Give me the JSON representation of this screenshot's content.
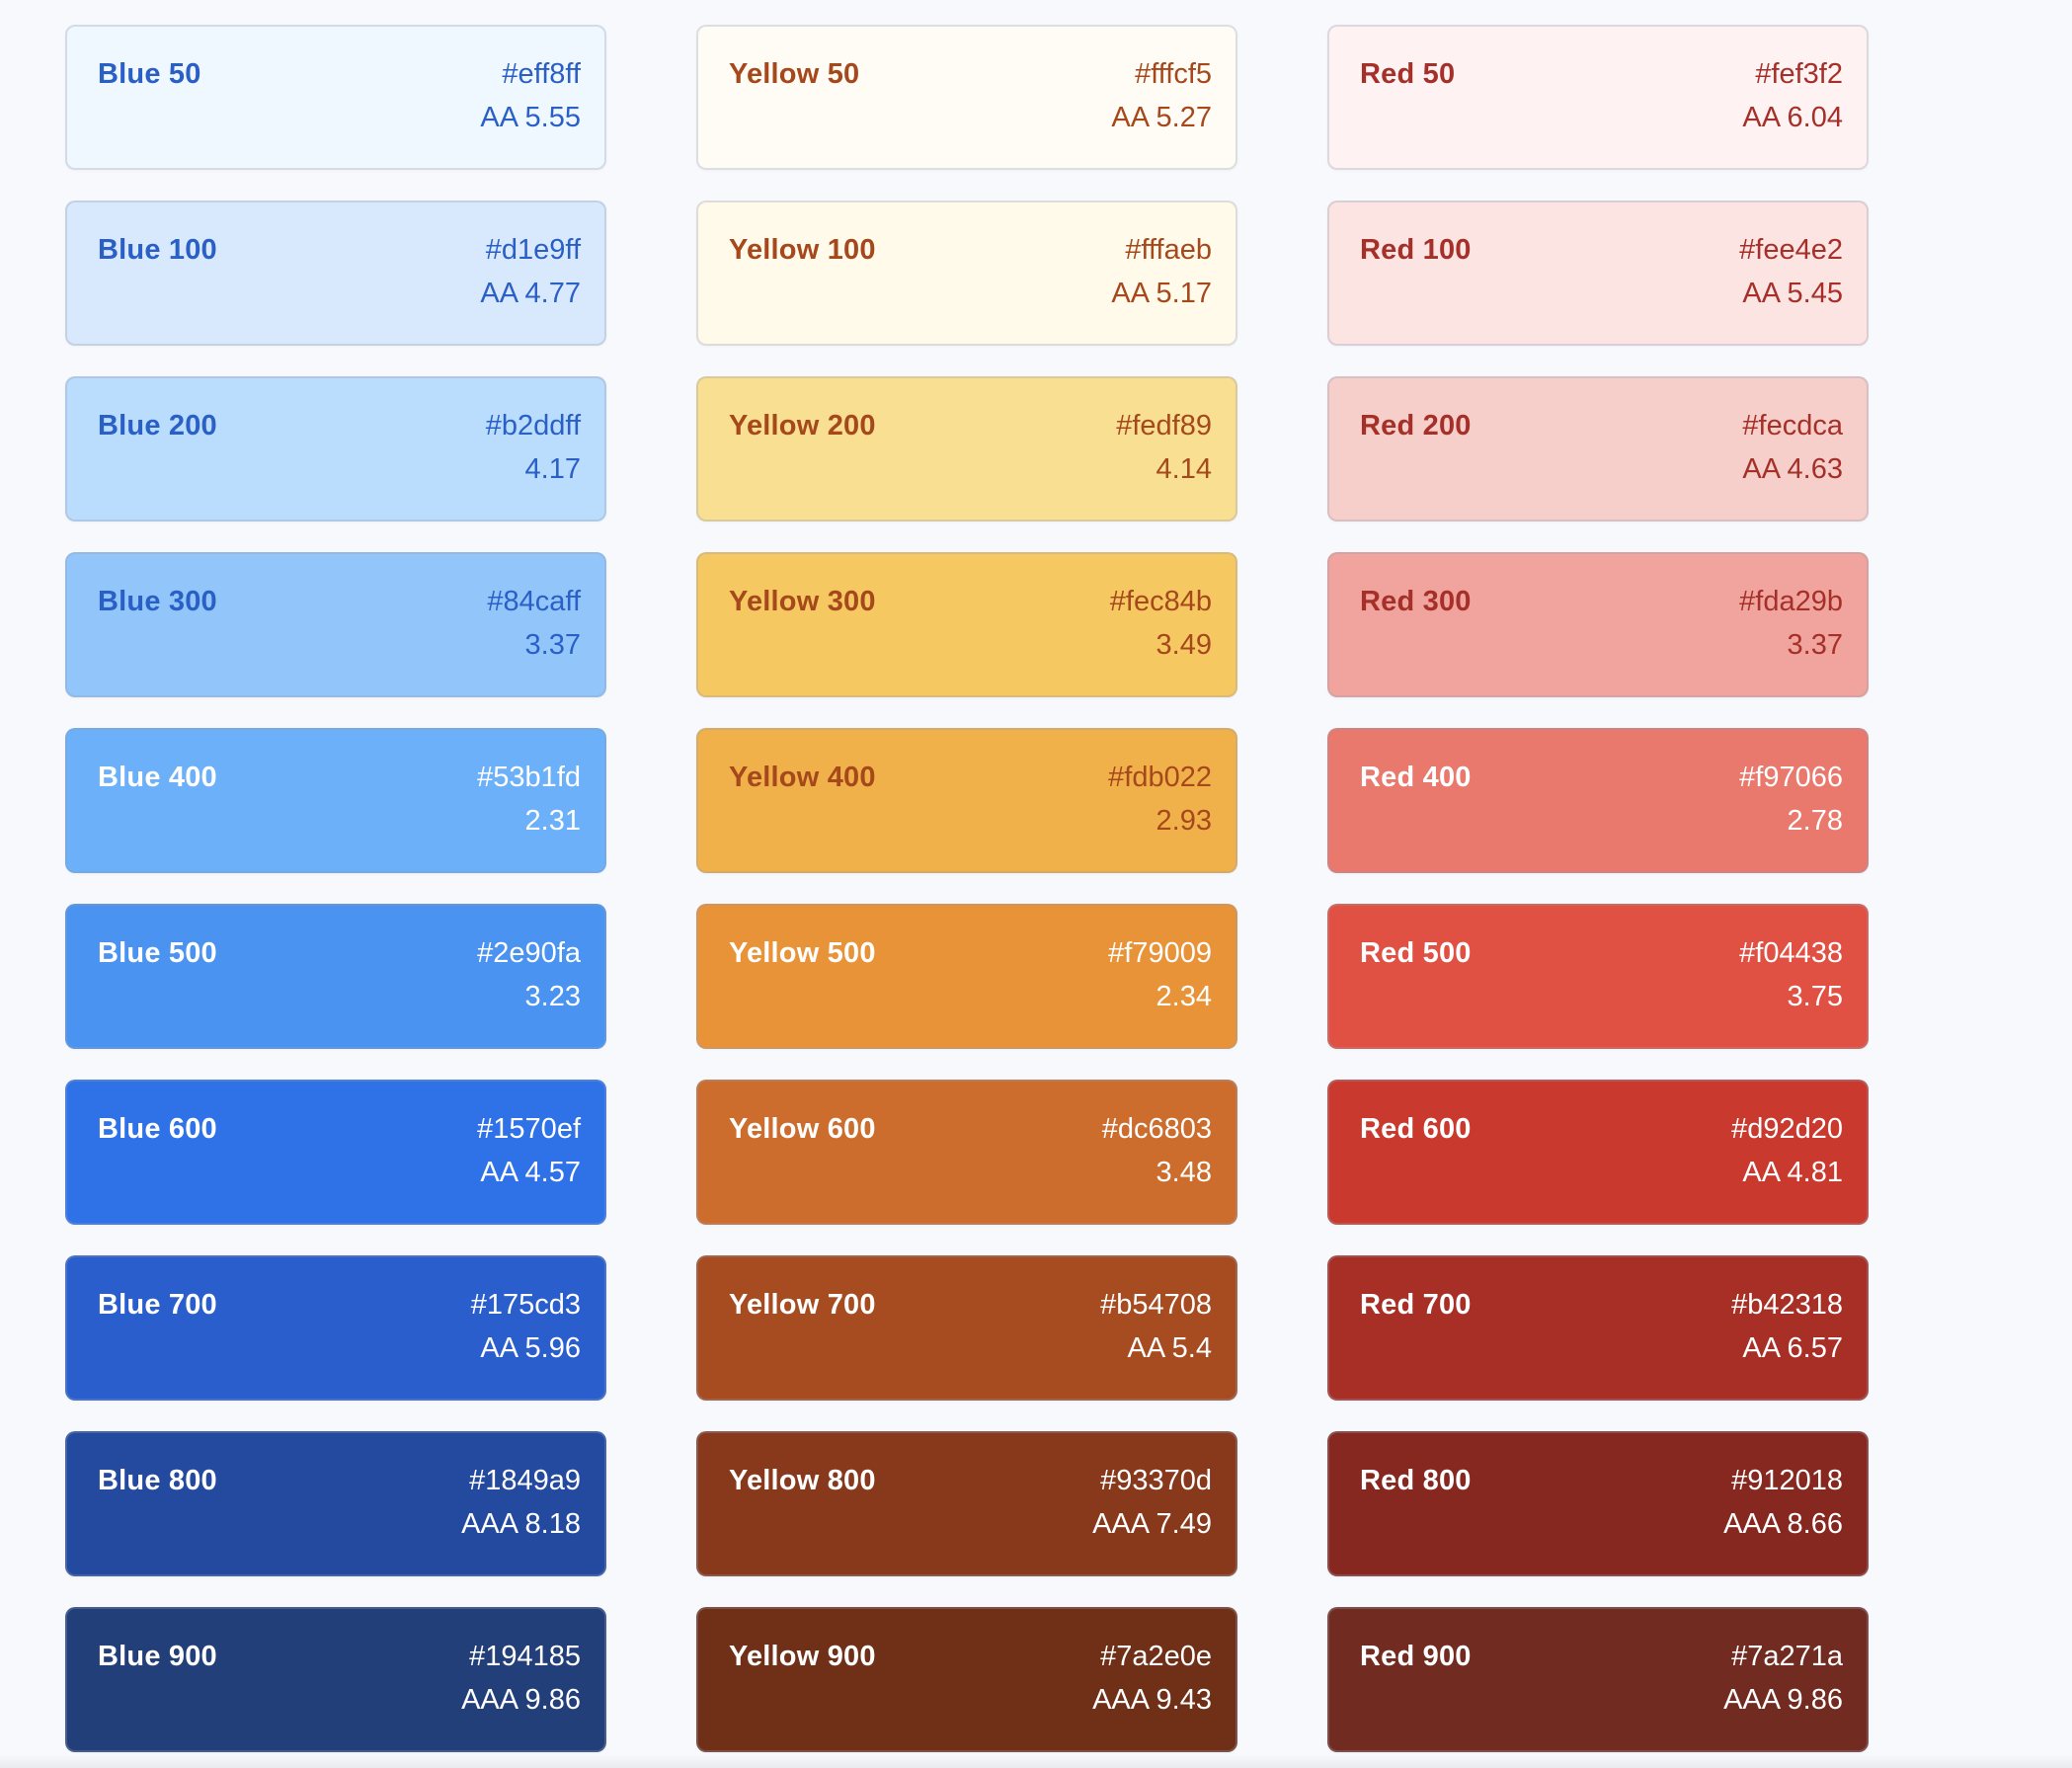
{
  "columns": [
    {
      "family": "blue",
      "swatches": [
        {
          "name": "Blue 50",
          "hex": "#eff8ff",
          "contrast": "AA 5.55",
          "bg": "#eff8ff",
          "fg": "#2a5fc6"
        },
        {
          "name": "Blue 100",
          "hex": "#d1e9ff",
          "contrast": "AA 4.77",
          "bg": "#d9e9fd",
          "fg": "#2a5fc6"
        },
        {
          "name": "Blue 200",
          "hex": "#b2ddff",
          "contrast": "4.17",
          "bg": "#badcfd",
          "fg": "#2a5fc6"
        },
        {
          "name": "Blue 300",
          "hex": "#84caff",
          "contrast": "3.37",
          "bg": "#92c6fb",
          "fg": "#2a5fc6"
        },
        {
          "name": "Blue 400",
          "hex": "#53b1fd",
          "contrast": "2.31",
          "bg": "#6bb0f8",
          "fg": "#ffffff"
        },
        {
          "name": "Blue 500",
          "hex": "#2e90fa",
          "contrast": "3.23",
          "bg": "#4a93f1",
          "fg": "#ffffff"
        },
        {
          "name": "Blue 600",
          "hex": "#1570ef",
          "contrast": "AA 4.57",
          "bg": "#2f72e8",
          "fg": "#ffffff"
        },
        {
          "name": "Blue 700",
          "hex": "#175cd3",
          "contrast": "AA 5.96",
          "bg": "#2a5ecd",
          "fg": "#ffffff"
        },
        {
          "name": "Blue 800",
          "hex": "#1849a9",
          "contrast": "AAA 8.18",
          "bg": "#234a9e",
          "fg": "#ffffff"
        },
        {
          "name": "Blue 900",
          "hex": "#194185",
          "contrast": "AAA 9.86",
          "bg": "#233f7a",
          "fg": "#ffffff"
        }
      ]
    },
    {
      "family": "yellow",
      "swatches": [
        {
          "name": "Yellow 50",
          "hex": "#fffcf5",
          "contrast": "AA 5.27",
          "bg": "#fffcf5",
          "fg": "#a5481c"
        },
        {
          "name": "Yellow 100",
          "hex": "#fffaeb",
          "contrast": "AA 5.17",
          "bg": "#fffaea",
          "fg": "#a5481c"
        },
        {
          "name": "Yellow 200",
          "hex": "#fedf89",
          "contrast": "4.14",
          "bg": "#f9df91",
          "fg": "#a5481c"
        },
        {
          "name": "Yellow 300",
          "hex": "#fec84b",
          "contrast": "3.49",
          "bg": "#f6c862",
          "fg": "#a5481c"
        },
        {
          "name": "Yellow 400",
          "hex": "#fdb022",
          "contrast": "2.93",
          "bg": "#f1b14a",
          "fg": "#a5481c"
        },
        {
          "name": "Yellow 500",
          "hex": "#f79009",
          "contrast": "2.34",
          "bg": "#e99338",
          "fg": "#ffffff"
        },
        {
          "name": "Yellow 600",
          "hex": "#dc6803",
          "contrast": "3.48",
          "bg": "#cc6d2d",
          "fg": "#ffffff"
        },
        {
          "name": "Yellow 700",
          "hex": "#b54708",
          "contrast": "AA 5.4",
          "bg": "#a74b20",
          "fg": "#ffffff"
        },
        {
          "name": "Yellow 800",
          "hex": "#93370d",
          "contrast": "AAA 7.49",
          "bg": "#88391c",
          "fg": "#ffffff"
        },
        {
          "name": "Yellow 900",
          "hex": "#7a2e0e",
          "contrast": "AAA 9.43",
          "bg": "#702f17",
          "fg": "#ffffff"
        }
      ]
    },
    {
      "family": "red",
      "swatches": [
        {
          "name": "Red 50",
          "hex": "#fef3f2",
          "contrast": "AA 6.04",
          "bg": "#fef3f2",
          "fg": "#a5302a"
        },
        {
          "name": "Red 100",
          "hex": "#fee4e2",
          "contrast": "AA 5.45",
          "bg": "#fbe4e2",
          "fg": "#a5302a"
        },
        {
          "name": "Red 200",
          "hex": "#fecdca",
          "contrast": "AA 4.63",
          "bg": "#f6cfca",
          "fg": "#a5302a"
        },
        {
          "name": "Red 300",
          "hex": "#fda29b",
          "contrast": "3.37",
          "bg": "#f0a49d",
          "fg": "#a5302a"
        },
        {
          "name": "Red 400",
          "hex": "#f97066",
          "contrast": "2.78",
          "bg": "#e9786d",
          "fg": "#ffffff"
        },
        {
          "name": "Red 500",
          "hex": "#f04438",
          "contrast": "3.75",
          "bg": "#e05144",
          "fg": "#ffffff"
        },
        {
          "name": "Red 600",
          "hex": "#d92d20",
          "contrast": "AA 4.81",
          "bg": "#c9392e",
          "fg": "#ffffff"
        },
        {
          "name": "Red 700",
          "hex": "#b42318",
          "contrast": "AA 6.57",
          "bg": "#a82f26",
          "fg": "#ffffff"
        },
        {
          "name": "Red 800",
          "hex": "#912018",
          "contrast": "AAA 8.66",
          "bg": "#862820",
          "fg": "#ffffff"
        },
        {
          "name": "Red 900",
          "hex": "#7a271a",
          "contrast": "AAA 9.86",
          "bg": "#722b20",
          "fg": "#ffffff"
        }
      ]
    }
  ]
}
